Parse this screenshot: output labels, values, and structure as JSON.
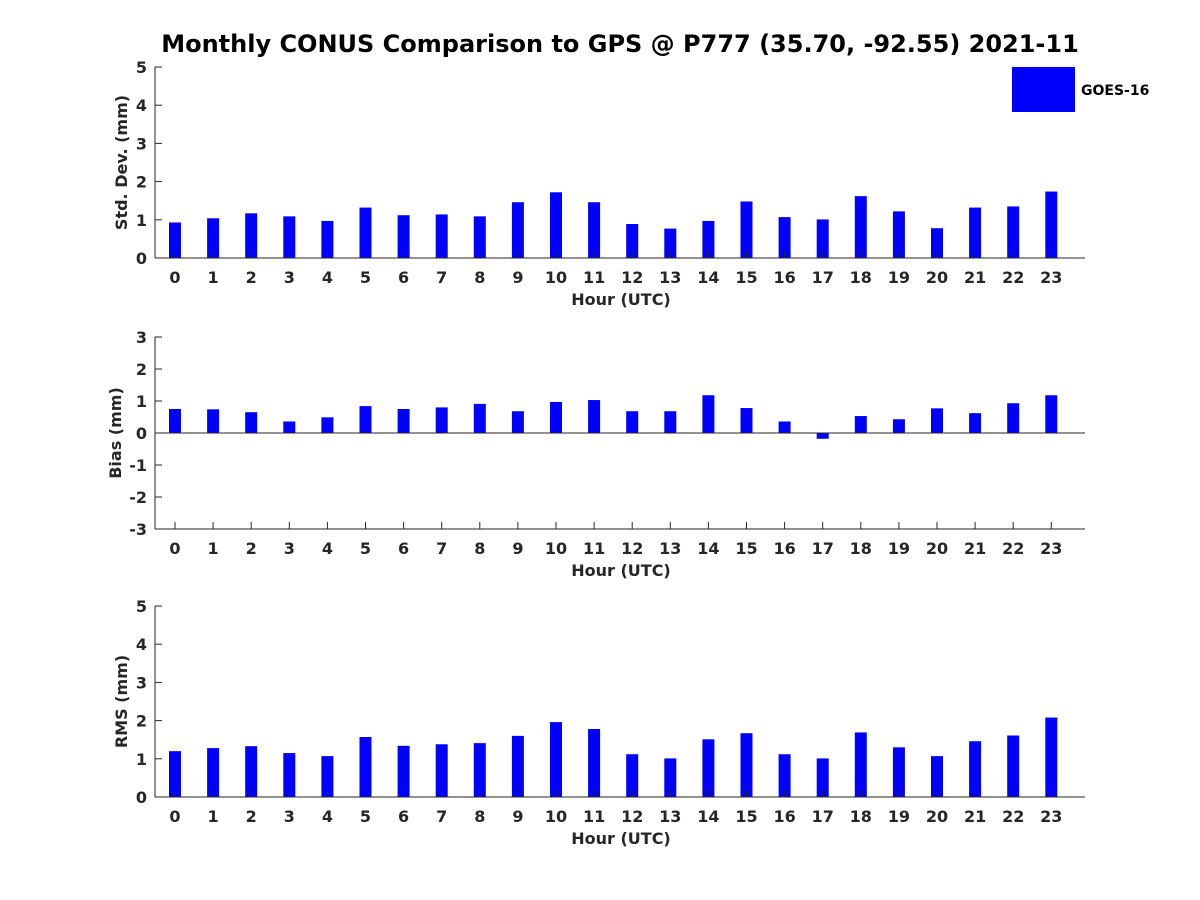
{
  "figure": {
    "title": "Monthly CONUS Comparison to GPS @ P777 (35.70, -92.55) 2021-11",
    "legend_label": "GOES-16",
    "bar_color": "#0000ff"
  },
  "chart_data": [
    {
      "type": "bar",
      "series": [
        {
          "name": "GOES-16",
          "values": [
            0.93,
            1.04,
            1.17,
            1.09,
            0.97,
            1.32,
            1.12,
            1.14,
            1.09,
            1.46,
            1.72,
            1.46,
            0.89,
            0.77,
            0.97,
            1.48,
            1.07,
            1.01,
            1.62,
            1.22,
            0.78,
            1.32,
            1.35,
            1.74
          ]
        }
      ],
      "categories": [
        "0",
        "1",
        "2",
        "3",
        "4",
        "5",
        "6",
        "7",
        "8",
        "9",
        "10",
        "11",
        "12",
        "13",
        "14",
        "15",
        "16",
        "17",
        "18",
        "19",
        "20",
        "21",
        "22",
        "23"
      ],
      "xlabel": "Hour (UTC)",
      "ylabel": "Std. Dev. (mm)",
      "ylim": [
        0,
        5
      ],
      "yticks": [
        0,
        1,
        2,
        3,
        4,
        5
      ],
      "legend": "top-right"
    },
    {
      "type": "bar",
      "series": [
        {
          "name": "GOES-16",
          "values": [
            0.75,
            0.74,
            0.65,
            0.36,
            0.49,
            0.84,
            0.75,
            0.8,
            0.91,
            0.68,
            0.97,
            1.03,
            0.68,
            0.68,
            1.18,
            0.78,
            0.36,
            -0.18,
            0.53,
            0.43,
            0.77,
            0.62,
            0.93,
            1.18
          ]
        }
      ],
      "categories": [
        "0",
        "1",
        "2",
        "3",
        "4",
        "5",
        "6",
        "7",
        "8",
        "9",
        "10",
        "11",
        "12",
        "13",
        "14",
        "15",
        "16",
        "17",
        "18",
        "19",
        "20",
        "21",
        "22",
        "23"
      ],
      "xlabel": "Hour (UTC)",
      "ylabel": "Bias (mm)",
      "ylim": [
        -3,
        3
      ],
      "yticks": [
        -3,
        -2,
        -1,
        0,
        1,
        2,
        3
      ]
    },
    {
      "type": "bar",
      "series": [
        {
          "name": "GOES-16",
          "values": [
            1.2,
            1.28,
            1.33,
            1.15,
            1.07,
            1.57,
            1.34,
            1.38,
            1.41,
            1.6,
            1.96,
            1.78,
            1.12,
            1.01,
            1.51,
            1.67,
            1.12,
            1.01,
            1.69,
            1.3,
            1.07,
            1.46,
            1.61,
            2.08
          ]
        }
      ],
      "categories": [
        "0",
        "1",
        "2",
        "3",
        "4",
        "5",
        "6",
        "7",
        "8",
        "9",
        "10",
        "11",
        "12",
        "13",
        "14",
        "15",
        "16",
        "17",
        "18",
        "19",
        "20",
        "21",
        "22",
        "23"
      ],
      "xlabel": "Hour (UTC)",
      "ylabel": "RMS (mm)",
      "ylim": [
        0,
        5
      ],
      "yticks": [
        0,
        1,
        2,
        3,
        4,
        5
      ]
    }
  ]
}
